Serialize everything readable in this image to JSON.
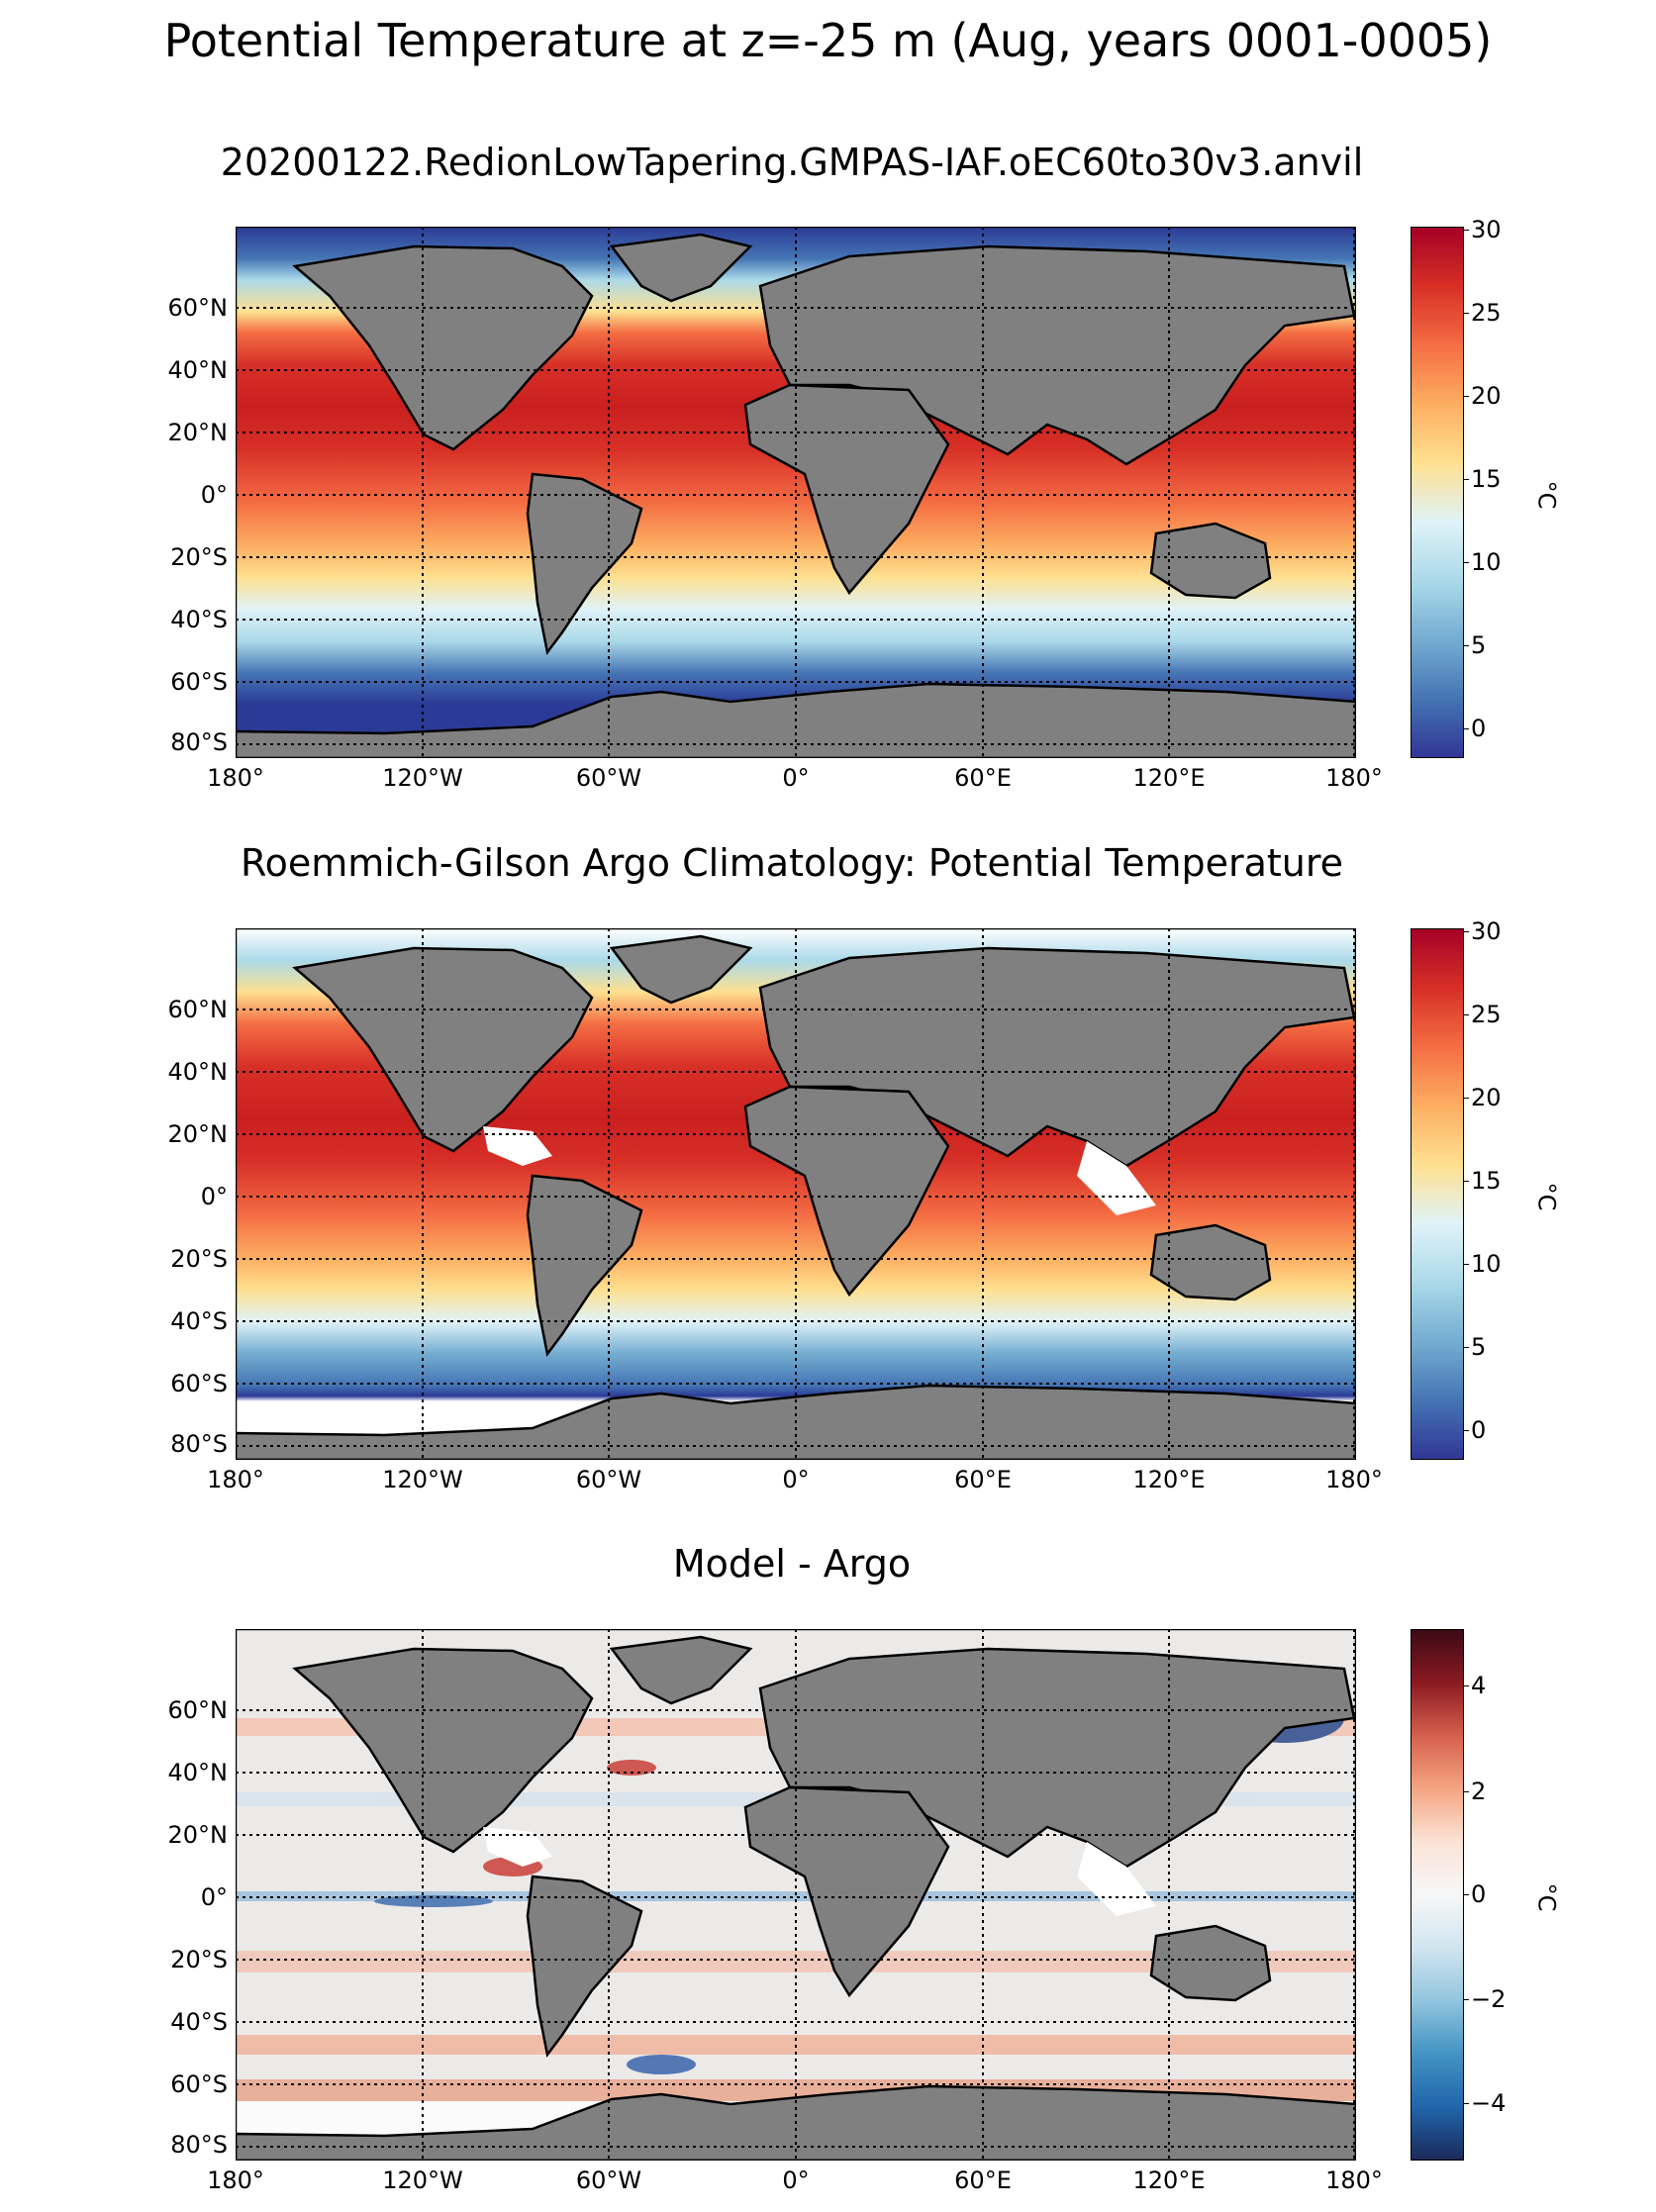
{
  "figure": {
    "suptitle": "Potential Temperature at z=-25 m (Aug, years 0001-0005)"
  },
  "panels": [
    {
      "title": "20200122.RedionLowTapering.GMPAS-IAF.oEC60to30v3.anvil",
      "colorbar": {
        "label": "°C",
        "colormap": "RdYlBu_r",
        "range": [
          -2,
          30
        ],
        "ticks": [
          "30",
          "25",
          "20",
          "15",
          "10",
          "5",
          "0"
        ]
      }
    },
    {
      "title": "Roemmich-Gilson Argo Climatology: Potential Temperature",
      "colorbar": {
        "label": "°C",
        "colormap": "RdYlBu_r",
        "range": [
          -2,
          30
        ],
        "ticks": [
          "30",
          "25",
          "20",
          "15",
          "10",
          "5",
          "0"
        ]
      }
    },
    {
      "title": "Model - Argo",
      "colorbar": {
        "label": "°C",
        "colormap": "RdBu_r",
        "range": [
          -5,
          5
        ],
        "ticks": [
          "4",
          "2",
          "0",
          "−2",
          "−4"
        ]
      }
    }
  ],
  "axes": {
    "lat_ticks": [
      "60°N",
      "40°N",
      "20°N",
      "0°",
      "20°S",
      "40°S",
      "60°S",
      "80°S"
    ],
    "lon_ticks": [
      "180°",
      "120°W",
      "60°W",
      "0°",
      "60°E",
      "120°E",
      "180°"
    ]
  },
  "colors": {
    "land": "#808080",
    "no_data": "#ffffff",
    "coastline": "#000000"
  }
}
